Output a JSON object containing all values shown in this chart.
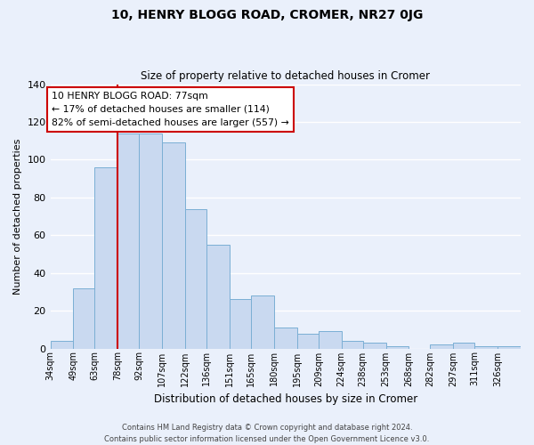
{
  "title": "10, HENRY BLOGG ROAD, CROMER, NR27 0JG",
  "subtitle": "Size of property relative to detached houses in Cromer",
  "xlabel": "Distribution of detached houses by size in Cromer",
  "ylabel": "Number of detached properties",
  "bar_labels": [
    "34sqm",
    "49sqm",
    "63sqm",
    "78sqm",
    "92sqm",
    "107sqm",
    "122sqm",
    "136sqm",
    "151sqm",
    "165sqm",
    "180sqm",
    "195sqm",
    "209sqm",
    "224sqm",
    "238sqm",
    "253sqm",
    "268sqm",
    "282sqm",
    "297sqm",
    "311sqm",
    "326sqm"
  ],
  "bar_values": [
    4,
    32,
    96,
    114,
    114,
    109,
    74,
    55,
    26,
    28,
    11,
    8,
    9,
    4,
    3,
    1,
    0,
    2,
    3,
    1,
    1
  ],
  "bar_color": "#c9d9f0",
  "bar_edge_color": "#7bafd4",
  "background_color": "#eaf0fb",
  "grid_color": "#ffffff",
  "annotation_line1": "10 HENRY BLOGG ROAD: 77sqm",
  "annotation_line2": "← 17% of detached houses are smaller (114)",
  "annotation_line3": "82% of semi-detached houses are larger (557) →",
  "annotation_box_color": "#ffffff",
  "annotation_box_edge_color": "#cc0000",
  "vline_color": "#cc0000",
  "ylim": [
    0,
    140
  ],
  "yticks": [
    0,
    20,
    40,
    60,
    80,
    100,
    120,
    140
  ],
  "footer_line1": "Contains HM Land Registry data © Crown copyright and database right 2024.",
  "footer_line2": "Contains public sector information licensed under the Open Government Licence v3.0."
}
